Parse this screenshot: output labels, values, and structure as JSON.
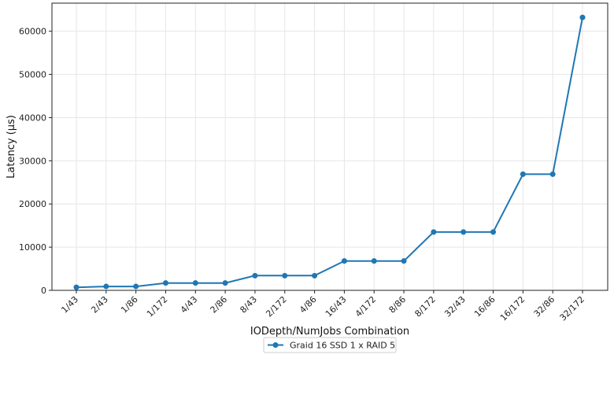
{
  "chart_data": {
    "type": "line",
    "xlabel": "IODepth/NumJobs Combination",
    "ylabel": "Latency (µs)",
    "categories": [
      "1/43",
      "2/43",
      "1/86",
      "1/172",
      "4/43",
      "2/86",
      "8/43",
      "2/172",
      "4/86",
      "16/43",
      "4/172",
      "8/86",
      "8/172",
      "32/43",
      "16/86",
      "16/172",
      "32/86",
      "32/172"
    ],
    "series": [
      {
        "name": "Graid 16 SSD 1 x RAID 5",
        "color": "#1f77b4",
        "values": [
          700,
          900,
          900,
          1700,
          1700,
          1700,
          3400,
          3400,
          3400,
          6800,
          6800,
          6800,
          13500,
          13500,
          13500,
          26900,
          26900,
          63200
        ]
      }
    ],
    "ylim": [
      0,
      66500
    ],
    "yticks": [
      0,
      10000,
      20000,
      30000,
      40000,
      50000,
      60000
    ],
    "grid": true,
    "legend_position": "bottom-center"
  }
}
